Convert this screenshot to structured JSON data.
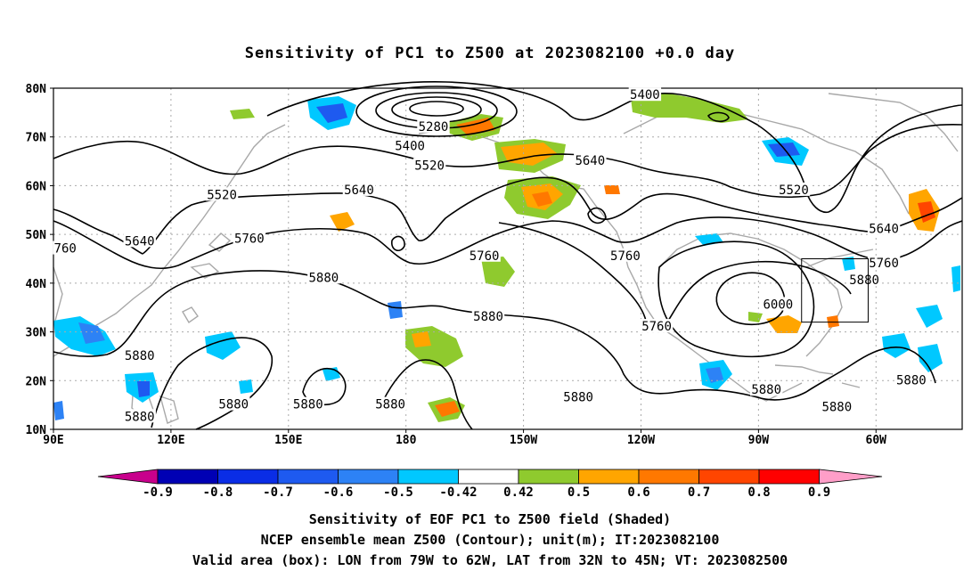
{
  "title": "Sensitivity of PC1 to Z500 at 2023082100 +0.0 day",
  "map": {
    "lat_labels": [
      {
        "label": "80N",
        "lat": 80
      },
      {
        "label": "70N",
        "lat": 70
      },
      {
        "label": "60N",
        "lat": 60
      },
      {
        "label": "50N",
        "lat": 50
      },
      {
        "label": "40N",
        "lat": 40
      },
      {
        "label": "30N",
        "lat": 30
      },
      {
        "label": "20N",
        "lat": 20
      },
      {
        "label": "10N",
        "lat": 10
      }
    ],
    "lon_labels": [
      {
        "label": "90E",
        "lon": 90
      },
      {
        "label": "120E",
        "lon": 120
      },
      {
        "label": "150E",
        "lon": 150
      },
      {
        "label": "180",
        "lon": 180
      },
      {
        "label": "150W",
        "lon": 210
      },
      {
        "label": "120W",
        "lon": 240
      },
      {
        "label": "90W",
        "lon": 270
      },
      {
        "label": "60W",
        "lon": 300
      }
    ],
    "lon_range": [
      90,
      322
    ],
    "lat_range": [
      10,
      80
    ],
    "valid_box": {
      "lon": [
        281,
        298
      ],
      "lat": [
        32,
        45
      ]
    },
    "contour_labels": [
      {
        "text": "5400",
        "lon": 241,
        "lat": 78.5
      },
      {
        "text": "5280",
        "lon": 187,
        "lat": 72
      },
      {
        "text": "5400",
        "lon": 181,
        "lat": 68
      },
      {
        "text": "5520",
        "lon": 186,
        "lat": 64
      },
      {
        "text": "5640",
        "lon": 227,
        "lat": 65
      },
      {
        "text": "5520",
        "lon": 133,
        "lat": 58
      },
      {
        "text": "5640",
        "lon": 168,
        "lat": 59
      },
      {
        "text": "5520",
        "lon": 279,
        "lat": 59
      },
      {
        "text": "5640",
        "lon": 112,
        "lat": 48.5
      },
      {
        "text": "760",
        "lon": 93,
        "lat": 47
      },
      {
        "text": "5760",
        "lon": 140,
        "lat": 49
      },
      {
        "text": "5760",
        "lon": 200,
        "lat": 45.5
      },
      {
        "text": "5760",
        "lon": 236,
        "lat": 45.5
      },
      {
        "text": "5640",
        "lon": 302,
        "lat": 51
      },
      {
        "text": "5760",
        "lon": 302,
        "lat": 44
      },
      {
        "text": "5880",
        "lon": 159,
        "lat": 41
      },
      {
        "text": "5880",
        "lon": 297,
        "lat": 40.5
      },
      {
        "text": "6000",
        "lon": 275,
        "lat": 35.5
      },
      {
        "text": "5880",
        "lon": 201,
        "lat": 33
      },
      {
        "text": "5760",
        "lon": 244,
        "lat": 31
      },
      {
        "text": "5880",
        "lon": 112,
        "lat": 25
      },
      {
        "text": "5880",
        "lon": 309,
        "lat": 20
      },
      {
        "text": "5880",
        "lon": 272,
        "lat": 18
      },
      {
        "text": "5880",
        "lon": 224,
        "lat": 16.5
      },
      {
        "text": "5880",
        "lon": 290,
        "lat": 14.5
      },
      {
        "text": "5880",
        "lon": 155,
        "lat": 15
      },
      {
        "text": "5880",
        "lon": 176,
        "lat": 15
      },
      {
        "text": "5880",
        "lon": 136,
        "lat": 15
      },
      {
        "text": "5880",
        "lon": 112,
        "lat": 12.5
      }
    ]
  },
  "colorbar": {
    "labels": [
      "-0.9",
      "-0.8",
      "-0.7",
      "-0.6",
      "-0.5",
      "-0.42",
      "0.42",
      "0.5",
      "0.6",
      "0.7",
      "0.8",
      "0.9"
    ],
    "colors": [
      "#0000b4",
      "#0a2de6",
      "#1e5af0",
      "#2d82f5",
      "#00c8ff",
      "#ffffff",
      "#8fca2e",
      "#ffa500",
      "#ff7800",
      "#ff4500",
      "#ff0000"
    ],
    "under_color": "#c8008c",
    "over_color": "#ff9ec8"
  },
  "caption": {
    "line1": "Sensitivity of EOF PC1 to Z500 field (Shaded)",
    "line2": "NCEP ensemble mean Z500 (Contour); unit(m); IT:2023082100",
    "line3": "Valid area (box): LON from 79W to 62W, LAT from 32N to 45N; VT: 2023082500"
  }
}
